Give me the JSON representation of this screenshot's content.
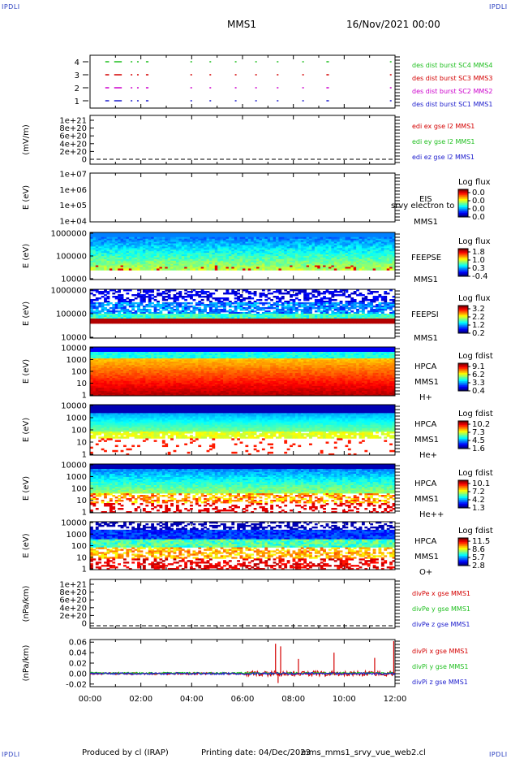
{
  "header": {
    "corner_label": "IPDLI",
    "title": "MMS1",
    "datetime": "16/Nov/2021 00:00"
  },
  "footer": {
    "produced": "Produced by cl (IRAP)",
    "printing": "Printing date: 04/Dec/2023",
    "script": "mms_mms1_srvy_vue_web2.cl"
  },
  "colors": {
    "red": "#d40000",
    "green": "#1fbf1f",
    "blue": "#1a1acc",
    "magenta": "#cc00cc"
  },
  "chart_data": [
    {
      "type": "line",
      "panel": "burst",
      "ylabel": "",
      "yticks": [
        "4",
        "3",
        "2",
        "1"
      ],
      "x": [
        "00:00",
        "12:00"
      ],
      "series": [
        {
          "name": "des dist burst SC1 MMS1",
          "color": "#1a1acc",
          "level": 1
        },
        {
          "name": "des dist burst SC2 MMS2",
          "color": "#cc00cc",
          "level": 2
        },
        {
          "name": "des dist burst SC3 MMS3",
          "color": "#d40000",
          "level": 3
        },
        {
          "name": "des dist burst SC4 MMS4",
          "color": "#1fbf1f",
          "level": 4
        }
      ],
      "burst_intervals_hours": [
        [
          0.6,
          0.75
        ],
        [
          0.95,
          1.25
        ],
        [
          1.6,
          1.65
        ],
        [
          1.85,
          1.9
        ],
        [
          2.2,
          2.3
        ],
        [
          3.95,
          4.0
        ],
        [
          4.7,
          4.75
        ],
        [
          5.7,
          5.75
        ],
        [
          6.5,
          6.55
        ],
        [
          7.35,
          7.4
        ],
        [
          8.35,
          8.4
        ],
        [
          9.3,
          9.4
        ],
        [
          11.8,
          11.85
        ]
      ]
    },
    {
      "type": "line",
      "panel": "edi",
      "ylabel": "(mV/m)",
      "yticks": [
        "1e+21",
        "8e+20",
        "6e+20",
        "4e+20",
        "2e+20",
        "0"
      ],
      "series": [
        {
          "name": "edi ex gse l2 MMS1",
          "color": "#d40000"
        },
        {
          "name": "edi ey gse l2 MMS1",
          "color": "#1fbf1f"
        },
        {
          "name": "edi ez gse l2 MMS1",
          "color": "#1a1acc"
        }
      ]
    },
    {
      "type": "heatmap",
      "panel": "eis",
      "ylabel": "E (eV)",
      "yticks": [
        "1e+07",
        "1e+06",
        "1e+05",
        "1e+04"
      ],
      "labels": [
        "EIS",
        "MMS1"
      ],
      "overlay_text": "srvy electron to",
      "colorbar_title": "Log flux",
      "colorbar_ticks": [
        "0.0",
        "0.0",
        "0.0",
        "0.0"
      ]
    },
    {
      "type": "heatmap",
      "panel": "feepse",
      "ylabel": "E (eV)",
      "yticks": [
        "1000000",
        "100000",
        "10000"
      ],
      "labels": [
        "FEEPSE",
        "MMS1"
      ],
      "colorbar_title": "Log flux",
      "colorbar_ticks": [
        "1.8",
        "1.0",
        "0.3",
        "-0.4"
      ]
    },
    {
      "type": "heatmap",
      "panel": "feepsi",
      "ylabel": "E (eV)",
      "yticks": [
        "1000000",
        "100000",
        "10000"
      ],
      "labels": [
        "FEEPSI",
        "MMS1"
      ],
      "colorbar_title": "Log flux",
      "colorbar_ticks": [
        "3.2",
        "2.2",
        "1.2",
        "0.2"
      ]
    },
    {
      "type": "heatmap",
      "panel": "hpca-h",
      "ylabel": "E (eV)",
      "yticks": [
        "10000",
        "1000",
        "100",
        "10",
        "1"
      ],
      "labels": [
        "HPCA",
        "MMS1",
        "H+"
      ],
      "colorbar_title": "Log fdist",
      "colorbar_ticks": [
        "9.1",
        "6.2",
        "3.3",
        "0.4"
      ]
    },
    {
      "type": "heatmap",
      "panel": "hpca-he",
      "ylabel": "E (eV)",
      "yticks": [
        "10000",
        "1000",
        "100",
        "10",
        "1"
      ],
      "labels": [
        "HPCA",
        "MMS1",
        "He+"
      ],
      "colorbar_title": "Log fdist",
      "colorbar_ticks": [
        "10.2",
        "7.3",
        "4.5",
        "1.6"
      ]
    },
    {
      "type": "heatmap",
      "panel": "hpca-hepp",
      "ylabel": "E (eV)",
      "yticks": [
        "10000",
        "1000",
        "100",
        "10",
        "1"
      ],
      "labels": [
        "HPCA",
        "MMS1",
        "He++"
      ],
      "colorbar_title": "Log fdist",
      "colorbar_ticks": [
        "10.1",
        "7.2",
        "4.2",
        "1.3"
      ]
    },
    {
      "type": "heatmap",
      "panel": "hpca-o",
      "ylabel": "E (eV)",
      "yticks": [
        "10000",
        "1000",
        "100",
        "10",
        "1"
      ],
      "labels": [
        "HPCA",
        "MMS1",
        "O+"
      ],
      "colorbar_title": "Log fdist",
      "colorbar_ticks": [
        "11.5",
        "8.6",
        "5.7",
        "2.8"
      ]
    },
    {
      "type": "line",
      "panel": "divpe",
      "ylabel": "(nPa/km)",
      "yticks": [
        "1e+21",
        "8e+20",
        "6e+20",
        "4e+20",
        "2e+20",
        "0"
      ],
      "series": [
        {
          "name": "divPe x gse MMS1",
          "color": "#d40000"
        },
        {
          "name": "divPe y gse MMS1",
          "color": "#1fbf1f"
        },
        {
          "name": "divPe z gse MMS1",
          "color": "#1a1acc"
        }
      ]
    },
    {
      "type": "line",
      "panel": "divpi",
      "ylabel": "(nPa/km)",
      "yticks": [
        "0.06",
        "0.04",
        "0.02",
        "0.00",
        "-0.02"
      ],
      "ylim": [
        -0.025,
        0.065
      ],
      "xticks": [
        "00:00",
        "02:00",
        "04:00",
        "06:00",
        "08:00",
        "10:00",
        "12:00"
      ],
      "series": [
        {
          "name": "divPi x gse MMS1",
          "color": "#d40000"
        },
        {
          "name": "divPi y gse MMS1",
          "color": "#1fbf1f"
        },
        {
          "name": "divPi z gse MMS1",
          "color": "#1a1acc"
        }
      ],
      "spikes": [
        {
          "series": "divPi x gse MMS1",
          "hour": 7.3,
          "value": 0.057
        },
        {
          "series": "divPi x gse MMS1",
          "hour": 7.5,
          "value": 0.052
        },
        {
          "series": "divPi x gse MMS1",
          "hour": 7.4,
          "value": -0.018
        },
        {
          "series": "divPi x gse MMS1",
          "hour": 8.2,
          "value": 0.028
        },
        {
          "series": "divPi x gse MMS1",
          "hour": 9.6,
          "value": 0.04
        },
        {
          "series": "divPi x gse MMS1",
          "hour": 11.2,
          "value": 0.03
        },
        {
          "series": "divPi x gse MMS1",
          "hour": 11.95,
          "value": 0.062
        }
      ]
    }
  ]
}
